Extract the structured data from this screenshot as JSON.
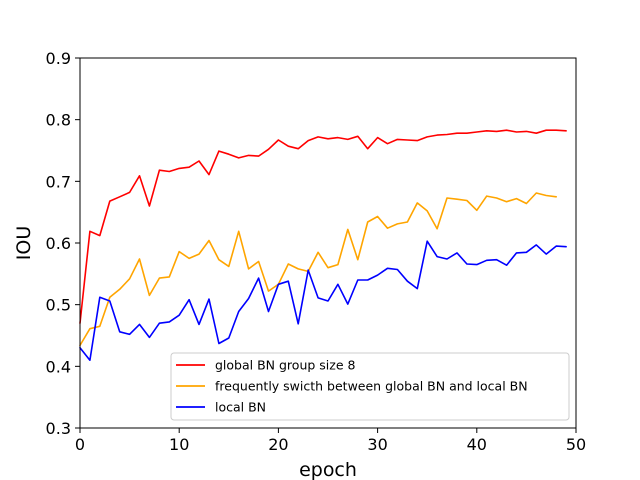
{
  "chart_data": {
    "type": "line",
    "title": "",
    "xlabel": "epoch",
    "ylabel": "IOU",
    "xlim": [
      0,
      50
    ],
    "ylim": [
      0.3,
      0.9
    ],
    "xticks": [
      "0",
      "10",
      "20",
      "30",
      "40",
      "50"
    ],
    "yticks": [
      "0.3",
      "0.4",
      "0.5",
      "0.6",
      "0.7",
      "0.8",
      "0.9"
    ],
    "grid": false,
    "legend_position": "lower-right",
    "series": [
      {
        "name": "global BN group size 8",
        "color": "#ff0000",
        "x": [
          0,
          1,
          2,
          3,
          4,
          5,
          6,
          7,
          8,
          9,
          10,
          11,
          12,
          13,
          14,
          15,
          16,
          17,
          18,
          19,
          20,
          21,
          22,
          23,
          24,
          25,
          26,
          27,
          28,
          29,
          30,
          31,
          32,
          33,
          34,
          35,
          36,
          37,
          38,
          39,
          40,
          41,
          42,
          43,
          44,
          45,
          46,
          47,
          48,
          49
        ],
        "values": [
          0.47,
          0.619,
          0.612,
          0.668,
          0.675,
          0.682,
          0.709,
          0.66,
          0.718,
          0.716,
          0.721,
          0.723,
          0.733,
          0.711,
          0.749,
          0.744,
          0.738,
          0.742,
          0.741,
          0.752,
          0.767,
          0.757,
          0.753,
          0.766,
          0.772,
          0.769,
          0.771,
          0.768,
          0.773,
          0.753,
          0.771,
          0.761,
          0.768,
          0.767,
          0.766,
          0.772,
          0.775,
          0.776,
          0.778,
          0.778,
          0.78,
          0.782,
          0.781,
          0.783,
          0.78,
          0.781,
          0.778,
          0.783,
          0.783,
          0.782
        ]
      },
      {
        "name": "frequently swicth between global BN and local BN",
        "color": "#ffa500",
        "x": [
          0,
          1,
          2,
          3,
          4,
          5,
          6,
          7,
          8,
          9,
          10,
          11,
          12,
          13,
          14,
          15,
          16,
          17,
          18,
          19,
          20,
          21,
          22,
          23,
          24,
          25,
          26,
          27,
          28,
          29,
          30,
          31,
          32,
          33,
          34,
          35,
          36,
          37,
          38,
          39,
          40,
          41,
          42,
          43,
          44,
          45,
          46,
          47,
          48
        ],
        "values": [
          0.434,
          0.461,
          0.465,
          0.512,
          0.525,
          0.542,
          0.574,
          0.515,
          0.543,
          0.545,
          0.586,
          0.575,
          0.582,
          0.604,
          0.573,
          0.562,
          0.619,
          0.558,
          0.57,
          0.522,
          0.533,
          0.566,
          0.558,
          0.554,
          0.585,
          0.56,
          0.565,
          0.622,
          0.573,
          0.634,
          0.643,
          0.624,
          0.631,
          0.634,
          0.665,
          0.652,
          0.623,
          0.673,
          0.671,
          0.669,
          0.653,
          0.676,
          0.673,
          0.667,
          0.672,
          0.664,
          0.681,
          0.677,
          0.675
        ]
      },
      {
        "name": "local BN",
        "color": "#0000ff",
        "x": [
          0,
          1,
          2,
          3,
          4,
          5,
          6,
          7,
          8,
          9,
          10,
          11,
          12,
          13,
          14,
          15,
          16,
          17,
          18,
          19,
          20,
          21,
          22,
          23,
          24,
          25,
          26,
          27,
          28,
          29,
          30,
          31,
          32,
          33,
          34,
          35,
          36,
          37,
          38,
          39,
          40,
          41,
          42,
          43,
          44,
          45,
          46,
          47,
          48,
          49
        ],
        "values": [
          0.43,
          0.41,
          0.512,
          0.506,
          0.456,
          0.452,
          0.468,
          0.447,
          0.47,
          0.472,
          0.483,
          0.508,
          0.468,
          0.509,
          0.437,
          0.446,
          0.489,
          0.51,
          0.543,
          0.489,
          0.533,
          0.538,
          0.469,
          0.556,
          0.511,
          0.506,
          0.533,
          0.501,
          0.54,
          0.54,
          0.548,
          0.559,
          0.557,
          0.538,
          0.526,
          0.603,
          0.578,
          0.574,
          0.584,
          0.566,
          0.565,
          0.572,
          0.573,
          0.564,
          0.584,
          0.585,
          0.597,
          0.582,
          0.595,
          0.594
        ]
      }
    ]
  }
}
